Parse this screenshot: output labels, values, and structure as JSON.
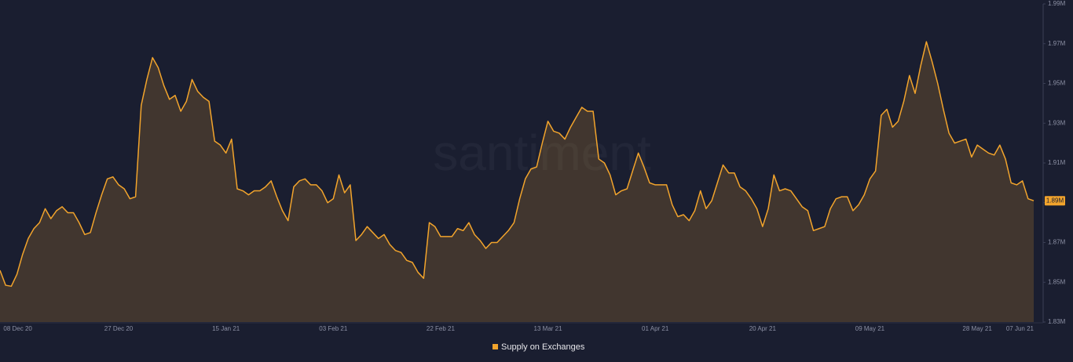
{
  "chart_data": {
    "type": "area",
    "watermark": "santiment",
    "categories": [
      null,
      null,
      "08 Dec 20",
      null,
      null,
      null,
      null,
      null,
      null,
      null,
      null,
      null,
      null,
      null,
      null,
      null,
      null,
      null,
      null,
      null,
      null,
      "27 Dec 20",
      null,
      null,
      null,
      null,
      null,
      null,
      null,
      null,
      null,
      null,
      null,
      null,
      null,
      null,
      null,
      null,
      null,
      null,
      "15 Jan 21",
      null,
      null,
      null,
      null,
      null,
      null,
      null,
      null,
      null,
      null,
      null,
      null,
      null,
      null,
      null,
      null,
      null,
      null,
      "03 Feb 21",
      null,
      null,
      null,
      null,
      null,
      null,
      null,
      null,
      null,
      null,
      null,
      null,
      null,
      null,
      null,
      null,
      null,
      null,
      "22 Feb 21",
      null,
      null,
      null,
      null,
      null,
      null,
      null,
      null,
      null,
      null,
      null,
      null,
      null,
      null,
      null,
      null,
      null,
      null,
      "13 Mar 21",
      null,
      null,
      null,
      null,
      null,
      null,
      null,
      null,
      null,
      null,
      null,
      null,
      null,
      null,
      null,
      null,
      null,
      null,
      "01 Apr 21",
      null,
      null,
      null,
      null,
      null,
      null,
      null,
      null,
      null,
      null,
      null,
      null,
      null,
      null,
      null,
      null,
      null,
      null,
      "20 Apr 21",
      null,
      null,
      null,
      null,
      null,
      null,
      null,
      null,
      null,
      null,
      null,
      null,
      null,
      null,
      null,
      null,
      null,
      null,
      "09 May 21",
      null,
      null,
      null,
      null,
      null,
      null,
      null,
      null,
      null,
      null,
      null,
      null,
      null,
      null,
      null,
      null,
      null,
      null,
      "28 May 21",
      null,
      null,
      null,
      null,
      null,
      null,
      null,
      null,
      null,
      "07 Jun 21"
    ],
    "series": [
      {
        "name": "Supply on Exchanges",
        "color": "#f2a42c",
        "last_label": "1.89M",
        "values": [
          1856000,
          1848500,
          1848000,
          1854000,
          1864000,
          1872000,
          1877000,
          1880000,
          1887000,
          1882000,
          1886000,
          1888000,
          1885000,
          1885000,
          1880000,
          1874000,
          1875000,
          1885000,
          1894000,
          1902000,
          1903000,
          1899000,
          1897000,
          1892000,
          1893000,
          1939000,
          1952000,
          1963000,
          1958000,
          1949000,
          1942000,
          1944000,
          1936000,
          1941000,
          1952000,
          1946000,
          1943000,
          1941000,
          1921000,
          1919000,
          1915000,
          1922000,
          1897000,
          1896000,
          1894000,
          1896000,
          1896000,
          1898000,
          1901000,
          1893000,
          1886000,
          1881000,
          1898000,
          1901000,
          1902000,
          1899000,
          1899000,
          1896000,
          1890000,
          1892000,
          1904000,
          1895000,
          1899000,
          1871000,
          1874000,
          1878000,
          1875000,
          1872000,
          1874000,
          1869000,
          1866000,
          1865000,
          1861000,
          1860000,
          1855000,
          1852000,
          1880000,
          1878000,
          1873000,
          1873000,
          1873000,
          1877000,
          1876000,
          1880000,
          1874000,
          1871000,
          1867000,
          1870000,
          1870000,
          1873000,
          1876000,
          1880000,
          1892000,
          1902000,
          1907000,
          1908000,
          1920000,
          1931000,
          1926000,
          1925000,
          1922000,
          1928000,
          1933000,
          1938000,
          1936000,
          1936000,
          1912000,
          1910000,
          1904000,
          1894000,
          1896000,
          1897000,
          1906000,
          1915000,
          1908000,
          1900000,
          1899000,
          1899000,
          1899000,
          1889000,
          1883000,
          1884000,
          1881000,
          1886000,
          1896000,
          1887000,
          1891000,
          1900000,
          1909000,
          1905000,
          1905000,
          1898000,
          1896000,
          1892000,
          1887000,
          1878000,
          1887000,
          1904000,
          1896000,
          1897000,
          1896000,
          1892000,
          1888000,
          1886000,
          1876000,
          1877000,
          1878000,
          1887000,
          1892000,
          1893000,
          1893000,
          1886000,
          1889000,
          1894000,
          1902000,
          1906000,
          1934000,
          1937000,
          1928000,
          1931000,
          1941000,
          1954000,
          1945000,
          1959000,
          1971000,
          1961000,
          1950000,
          1937000,
          1925000,
          1920000,
          1921000,
          1922000,
          1913000,
          1919000,
          1917000,
          1915000,
          1914000,
          1919000,
          1912000,
          1900000,
          1899000,
          1901000,
          1892000,
          1891000
        ]
      }
    ],
    "ylim": [
      1830000,
      1990000
    ],
    "yticks": [
      {
        "value": 1830000,
        "label": "1.83M"
      },
      {
        "value": 1850000,
        "label": "1.85M"
      },
      {
        "value": 1870000,
        "label": "1.87M"
      },
      {
        "value": 1890000,
        "label": "1.89M"
      },
      {
        "value": 1910000,
        "label": "1.91M"
      },
      {
        "value": 1930000,
        "label": "1.93M"
      },
      {
        "value": 1950000,
        "label": "1.95M"
      },
      {
        "value": 1970000,
        "label": "1.97M"
      },
      {
        "value": 1990000,
        "label": "1.99M"
      }
    ],
    "grid": false
  }
}
